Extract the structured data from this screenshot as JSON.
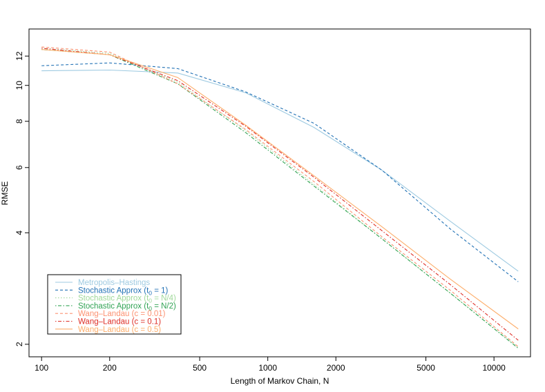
{
  "chart_data": {
    "type": "line",
    "title": "",
    "xlabel": "Length of Markov Chain, N",
    "ylabel": "RMSE",
    "x_scale": "log",
    "y_scale": "log",
    "xlim": [
      88,
      14500
    ],
    "ylim": [
      1.85,
      14.2
    ],
    "x_ticks": [
      100,
      200,
      500,
      1000,
      2000,
      5000,
      10000
    ],
    "x_tick_labels": [
      "100",
      "200",
      "500",
      "1000",
      "2000",
      "5000",
      "10000"
    ],
    "y_ticks": [
      2,
      4,
      6,
      8,
      10,
      12
    ],
    "y_tick_labels": [
      "2",
      "4",
      "6",
      "8",
      "10",
      "12"
    ],
    "grid": false,
    "legend_position": "bottom-left",
    "series": [
      {
        "name": "Metropolis–Hastings",
        "name_prefix": "Metropolis–Hastings",
        "name_sub": "",
        "name_suffix": "",
        "color": "#9ecae1",
        "dash": "solid",
        "x": [
          100,
          200,
          400,
          800,
          1600,
          3200,
          6400,
          12800
        ],
        "y": [
          10.95,
          11.0,
          10.8,
          9.55,
          7.7,
          5.9,
          4.3,
          3.15
        ]
      },
      {
        "name": "Stochastic Approx (t0 = 1)",
        "name_prefix": "Stochastic Approx (t",
        "name_sub": "0",
        "name_suffix": " = 1)",
        "color": "#2171b5",
        "dash": "dashed",
        "x": [
          100,
          200,
          400,
          800,
          1600,
          3200,
          6400,
          12800
        ],
        "y": [
          11.3,
          11.5,
          11.1,
          9.6,
          7.9,
          5.9,
          4.1,
          2.95
        ]
      },
      {
        "name": "Stochastic Approx (t0 = N/4)",
        "name_prefix": "Stochastic Approx (t",
        "name_sub": "0",
        "name_suffix": " = N/4)",
        "color": "#a1d99b",
        "dash": "dotted",
        "x": [
          100,
          200,
          400,
          800,
          1600,
          3200,
          6400,
          12800
        ],
        "y": [
          12.6,
          12.2,
          10.2,
          7.55,
          5.4,
          3.85,
          2.75,
          1.96
        ]
      },
      {
        "name": "Stochastic Approx (t0 = N/2)",
        "name_prefix": "Stochastic Approx (t",
        "name_sub": "0",
        "name_suffix": " = N/2)",
        "color": "#31a354",
        "dash": "dotdash",
        "x": [
          100,
          200,
          400,
          800,
          1600,
          3200,
          6400,
          12800
        ],
        "y": [
          12.5,
          12.1,
          10.1,
          7.45,
          5.35,
          3.85,
          2.75,
          1.95
        ]
      },
      {
        "name": "Wang–Landau (c = 0.01)",
        "name_prefix": "Wang–Landau (c = 0.01)",
        "name_sub": "",
        "name_suffix": "",
        "color": "#fc9272",
        "dash": "dashed",
        "x": [
          100,
          200,
          400,
          800,
          1600,
          3200,
          6400,
          12800
        ],
        "y": [
          12.7,
          12.3,
          10.1,
          7.6,
          5.5,
          3.9,
          2.8,
          1.97
        ]
      },
      {
        "name": "Wang–Landau (c = 0.1)",
        "name_prefix": "Wang–Landau (c = 0.1)",
        "name_sub": "",
        "name_suffix": "",
        "color": "#de2d26",
        "dash": "dotdash",
        "x": [
          100,
          200,
          400,
          800,
          1600,
          3200,
          6400,
          12800
        ],
        "y": [
          12.6,
          12.1,
          10.3,
          7.75,
          5.65,
          4.05,
          2.9,
          2.05
        ]
      },
      {
        "name": "Wang–Landau (c = 0.5)",
        "name_prefix": "Wang–Landau (c = 0.5)",
        "name_sub": "",
        "name_suffix": "",
        "color": "#fdae6b",
        "dash": "solid",
        "x": [
          100,
          200,
          400,
          800,
          1600,
          3200,
          6400,
          12800
        ],
        "y": [
          12.5,
          12.1,
          10.5,
          7.8,
          5.7,
          4.15,
          3.0,
          2.2
        ]
      }
    ]
  }
}
